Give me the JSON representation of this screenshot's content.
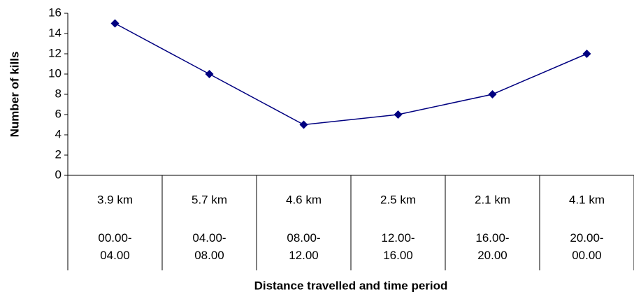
{
  "chart_data": {
    "type": "line",
    "x_label": "Distance travelled and time period",
    "y_label": "Number of kills",
    "categories": [
      "3.9 km",
      "5.7 km",
      "4.6 km",
      "2.5 km",
      "2.1 km",
      "4.1 km"
    ],
    "time_periods": [
      "00.00-04.00",
      "04.00-08.00",
      "08.00-12.00",
      "12.00-16.00",
      "16.00-20.00",
      "20.00-00.00"
    ],
    "values": [
      15,
      10,
      5,
      6,
      8,
      12
    ],
    "color": "#000080",
    "ylim": [
      0,
      16
    ],
    "yticks": [
      0,
      2,
      4,
      6,
      8,
      10,
      12,
      14,
      16
    ],
    "grid": false
  }
}
